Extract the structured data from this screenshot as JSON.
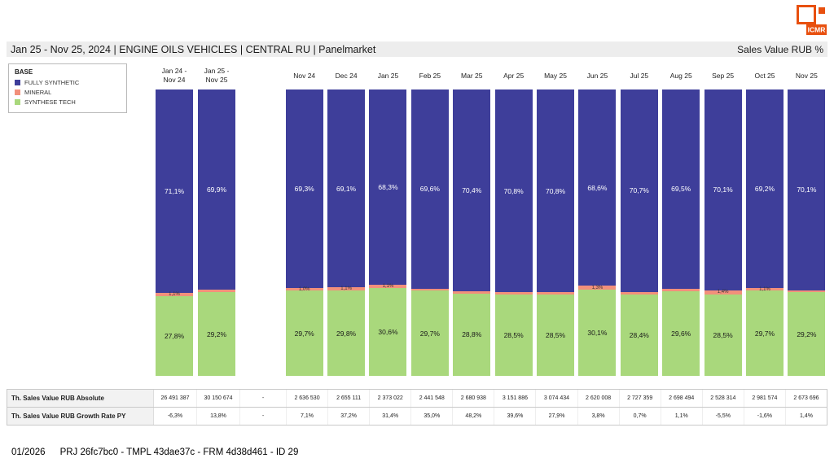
{
  "header": {
    "title": "Jan 25 - Nov 25, 2024 | ENGINE OILS VEHICLES | CENTRAL RU | Panelmarket",
    "unit_label": "Sales Value RUB %"
  },
  "logo": {
    "text": "ICMR",
    "color": "#e8500f"
  },
  "legend": {
    "title": "BASE",
    "items": [
      {
        "label": "FULLY SYNTHETIC",
        "color": "#3e3e9a"
      },
      {
        "label": "MINERAL",
        "color": "#f2907b"
      },
      {
        "label": "SYNTHESE TECH",
        "color": "#a9d87c"
      }
    ]
  },
  "chart_data": {
    "type": "bar",
    "stacked": true,
    "unit": "%",
    "ylim": [
      0,
      100
    ],
    "legend_position": "top-left",
    "grid": false,
    "categories": [
      "Jan 24 -\nNov 24",
      "Jan 25 -\nNov 25",
      "Nov 24",
      "Dec 24",
      "Jan 25",
      "Feb 25",
      "Mar 25",
      "Apr 25",
      "May 25",
      "Jun 25",
      "Jul 25",
      "Aug 25",
      "Sep 25",
      "Oct 25",
      "Nov 25"
    ],
    "series": [
      {
        "name": "FULLY SYNTHETIC",
        "color": "#3e3e9a",
        "label_color": "#ffffff",
        "values": [
          71.1,
          69.9,
          69.3,
          69.1,
          68.3,
          69.6,
          70.4,
          70.8,
          70.8,
          68.6,
          70.7,
          69.5,
          70.1,
          69.2,
          70.1
        ]
      },
      {
        "name": "MINERAL",
        "color": "#f2907b",
        "label_color": "#333333",
        "values": [
          1.1,
          0.9,
          1.0,
          1.1,
          1.1,
          0.7,
          0.8,
          0.7,
          0.7,
          1.3,
          0.9,
          0.9,
          1.4,
          1.1,
          0.7
        ]
      },
      {
        "name": "SYNTHESE TECH",
        "color": "#a9d87c",
        "label_color": "#1a1a1a",
        "values": [
          27.8,
          29.2,
          29.7,
          29.8,
          30.6,
          29.7,
          28.8,
          28.5,
          28.5,
          30.1,
          28.4,
          29.6,
          28.5,
          29.7,
          29.2
        ]
      }
    ]
  },
  "table": {
    "rows": [
      {
        "label": "Th. Sales Value RUB Absolute",
        "values": [
          "26 491 387",
          "30 150 674",
          "-",
          "2 636 530",
          "2 655 111",
          "2 373 022",
          "2 441 548",
          "2 680 938",
          "3 151 886",
          "3 074 434",
          "2 620 008",
          "2 727 359",
          "2 698 494",
          "2 528 314",
          "2 981 574",
          "2 673 696"
        ]
      },
      {
        "label": "Th. Sales Value RUB Growth Rate PY",
        "values": [
          "-6,3%",
          "13,8%",
          "-",
          "7,1%",
          "37,2%",
          "31,4%",
          "35,0%",
          "48,2%",
          "39,6%",
          "27,9%",
          "3,8%",
          "0,7%",
          "1,1%",
          "-5,5%",
          "-1,6%",
          "1,4%"
        ]
      }
    ]
  },
  "footer": {
    "date": "01/2026",
    "meta": "PRJ 26fc7bc0 - TMPL 43dae37c - FRM 4d38d461 - ID 29"
  }
}
